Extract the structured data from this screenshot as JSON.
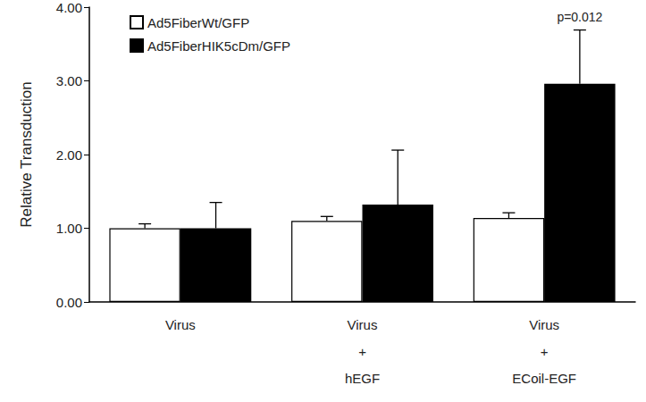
{
  "chart_data": {
    "type": "bar",
    "y_label": "Relative Transduction",
    "categories": [
      "Virus",
      "Virus\n+\nhEGF",
      "Virus\n+\nECoil-EGF"
    ],
    "series": [
      {
        "name": "Ad5FiberWt/GFP",
        "color": "#ffffff",
        "values": [
          1.0,
          1.1,
          1.14
        ],
        "errors": [
          0.06,
          0.06,
          0.07
        ],
        "annotations": [
          null,
          null,
          null
        ]
      },
      {
        "name": "Ad5FiberHIK5cDm/GFP",
        "color": "#000000",
        "values": [
          1.0,
          1.32,
          2.96
        ],
        "errors": [
          0.35,
          0.74,
          0.73
        ],
        "annotations": [
          null,
          null,
          "p=0.012"
        ]
      }
    ],
    "ylim": [
      0,
      4
    ],
    "yticks": [
      {
        "value": 0,
        "label": "0.00"
      },
      {
        "value": 1,
        "label": "1.00"
      },
      {
        "value": 2,
        "label": "2.00"
      },
      {
        "value": 3,
        "label": "3.00"
      },
      {
        "value": 4,
        "label": "4.00"
      }
    ],
    "grid": false,
    "legend": "upper left"
  }
}
